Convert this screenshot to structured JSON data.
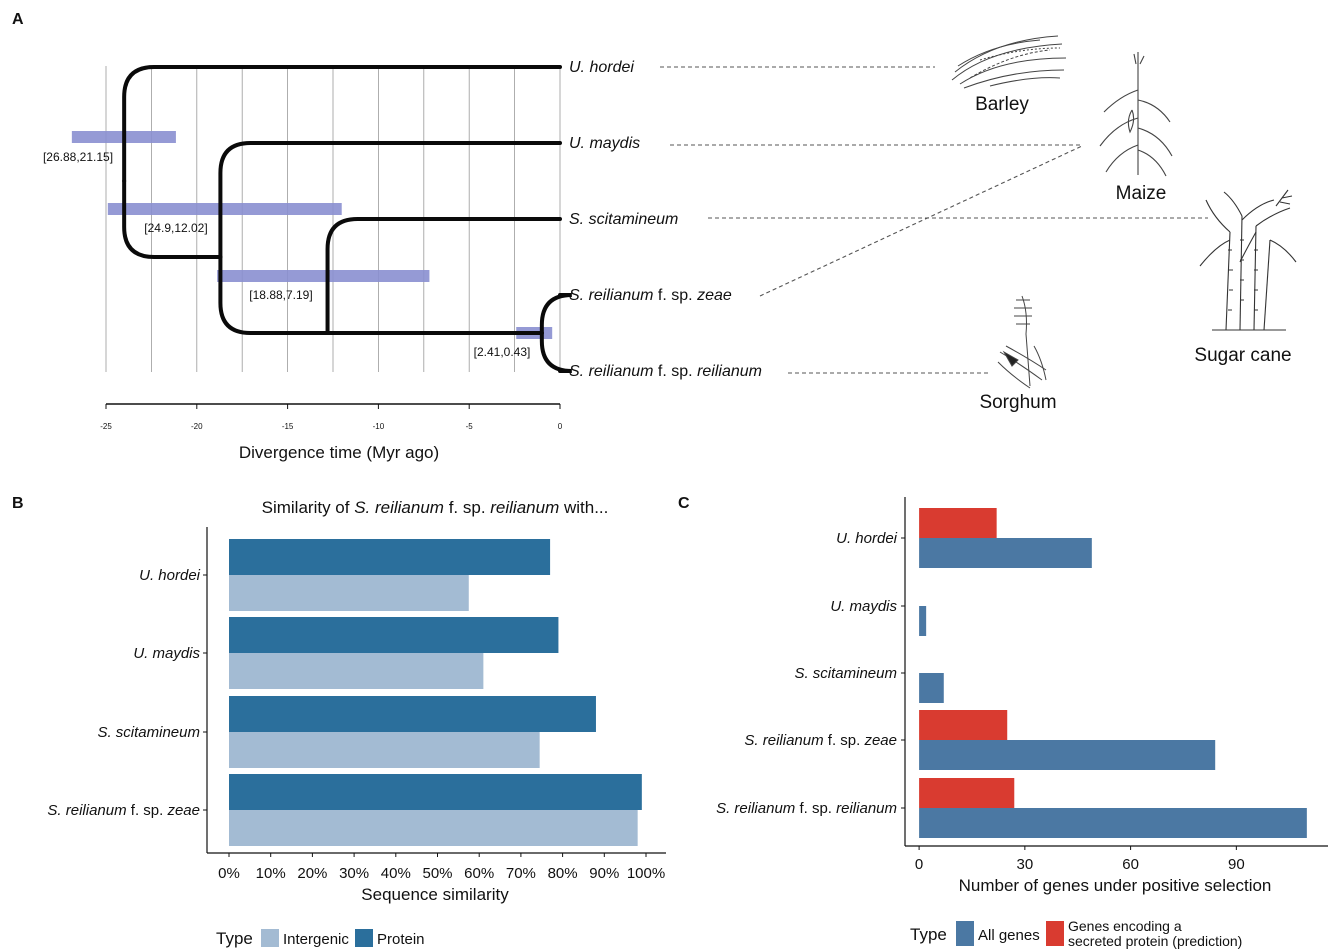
{
  "panel_labels": {
    "a": "A",
    "b": "B",
    "c": "C"
  },
  "chart_data": [
    {
      "panel": "A",
      "type": "phylogeny",
      "xlabel": "Divergence time (Myr ago)",
      "xlim": [
        -25,
        0
      ],
      "x_ticks": [
        -25,
        -20,
        -15,
        -10,
        -5,
        0
      ],
      "x_tick_labels": [
        "-25",
        "-20",
        "-15",
        "-10",
        "-5",
        "0"
      ],
      "grid": true,
      "taxa": [
        {
          "id": "uh",
          "label": [
            {
              "t": "U. hordei",
              "i": true
            }
          ]
        },
        {
          "id": "um",
          "label": [
            {
              "t": "U. maydis",
              "i": true
            }
          ]
        },
        {
          "id": "ss",
          "label": [
            {
              "t": "S. scitamineum",
              "i": true
            }
          ]
        },
        {
          "id": "srz",
          "label": [
            {
              "t": "S. reilianum",
              "i": true
            },
            {
              "t": " f. sp. ",
              "i": false
            },
            {
              "t": "zeae",
              "i": true
            }
          ]
        },
        {
          "id": "srr",
          "label": [
            {
              "t": "S. reilianum",
              "i": true
            },
            {
              "t": " f. sp. ",
              "i": false
            },
            {
              "t": "reilianum",
              "i": true
            }
          ]
        }
      ],
      "nodes": [
        {
          "id": "n1",
          "age": -24,
          "children": [
            "uh",
            "n2"
          ],
          "interval": [
            -26.88,
            -21.15
          ],
          "interval_label": "[26.88,21.15]"
        },
        {
          "id": "n2",
          "age": -18.7,
          "children": [
            "um",
            "n3"
          ],
          "interval": [
            -24.9,
            -12.02
          ],
          "interval_label": "[24.9,12.02]"
        },
        {
          "id": "n3",
          "age": -12.8,
          "children": [
            "ss",
            "n4"
          ],
          "interval": [
            -18.88,
            -7.19
          ],
          "interval_label": "[18.88,7.19]"
        },
        {
          "id": "n4",
          "age": -1.0,
          "children": [
            "srz",
            "srr"
          ],
          "interval": [
            -2.41,
            -0.43
          ],
          "interval_label": "[2.41,0.43]"
        }
      ],
      "hosts": [
        {
          "name": "Barley",
          "pathogens": [
            "uh"
          ]
        },
        {
          "name": "Maize",
          "pathogens": [
            "um",
            "srz"
          ]
        },
        {
          "name": "Sugar cane",
          "pathogens": [
            "ss"
          ]
        },
        {
          "name": "Sorghum",
          "pathogens": [
            "srr"
          ]
        }
      ]
    },
    {
      "panel": "B",
      "type": "bar",
      "orientation": "horizontal",
      "title": [
        {
          "t": "Similarity of ",
          "i": false
        },
        {
          "t": "S. reilianum",
          "i": true
        },
        {
          "t": " f. sp. ",
          "i": false
        },
        {
          "t": "reilianum",
          "i": true
        },
        {
          "t": " with...",
          "i": false
        }
      ],
      "categories": [
        [
          {
            "t": "U. hordei",
            "i": true
          }
        ],
        [
          {
            "t": "U. maydis",
            "i": true
          }
        ],
        [
          {
            "t": "S. scitamineum",
            "i": true
          }
        ],
        [
          {
            "t": "S. reilianum",
            "i": true
          },
          {
            "t": " f. sp. ",
            "i": false
          },
          {
            "t": "zeae",
            "i": true
          }
        ]
      ],
      "series": [
        {
          "name": "Protein",
          "color": "#2b6f9c",
          "values": [
            77,
            79,
            88,
            99
          ]
        },
        {
          "name": "Intergenic",
          "color": "#a3bbd3",
          "values": [
            57.5,
            61,
            74.5,
            98
          ]
        }
      ],
      "xlabel": "Sequence similarity",
      "xlim": [
        0,
        100
      ],
      "x_ticks": [
        0,
        10,
        20,
        30,
        40,
        50,
        60,
        70,
        80,
        90,
        100
      ],
      "x_tick_labels": [
        "0%",
        "10%",
        "20%",
        "30%",
        "40%",
        "50%",
        "60%",
        "70%",
        "80%",
        "90%",
        "100%"
      ],
      "legend": {
        "title": "Type",
        "position": "bottom",
        "items": [
          {
            "name": "Intergenic",
            "color": "#a3bbd3"
          },
          {
            "name": "Protein",
            "color": "#2b6f9c"
          }
        ]
      }
    },
    {
      "panel": "C",
      "type": "bar",
      "orientation": "horizontal",
      "categories": [
        [
          {
            "t": "U. hordei",
            "i": true
          }
        ],
        [
          {
            "t": "U. maydis",
            "i": true
          }
        ],
        [
          {
            "t": "S. scitamineum",
            "i": true
          }
        ],
        [
          {
            "t": "S. reilianum",
            "i": true
          },
          {
            "t": " f. sp. ",
            "i": false
          },
          {
            "t": "zeae",
            "i": true
          }
        ],
        [
          {
            "t": "S. reilianum",
            "i": true
          },
          {
            "t": " f. sp. ",
            "i": false
          },
          {
            "t": "reilianum",
            "i": true
          }
        ]
      ],
      "series": [
        {
          "name": "Genes encoding a secreted protein (prediction)",
          "color": "#d93b30",
          "values": [
            22,
            0,
            0,
            25,
            27
          ]
        },
        {
          "name": "All genes",
          "color": "#4b78a3",
          "values": [
            49,
            2,
            7,
            84,
            110
          ]
        }
      ],
      "xlabel": "Number of genes under positive selection",
      "xlim": [
        -4,
        116
      ],
      "x_ticks": [
        0,
        30,
        60,
        90
      ],
      "x_tick_labels": [
        "0",
        "30",
        "60",
        "90"
      ],
      "legend": {
        "title": "Type",
        "position": "bottom",
        "items": [
          {
            "name": "All genes",
            "color": "#4b78a3",
            "lines": [
              "All genes"
            ]
          },
          {
            "name": "Genes encoding a secreted protein (prediction)",
            "color": "#d93b30",
            "lines": [
              "Genes encoding a",
              "secreted protein (prediction)"
            ]
          }
        ]
      }
    }
  ]
}
